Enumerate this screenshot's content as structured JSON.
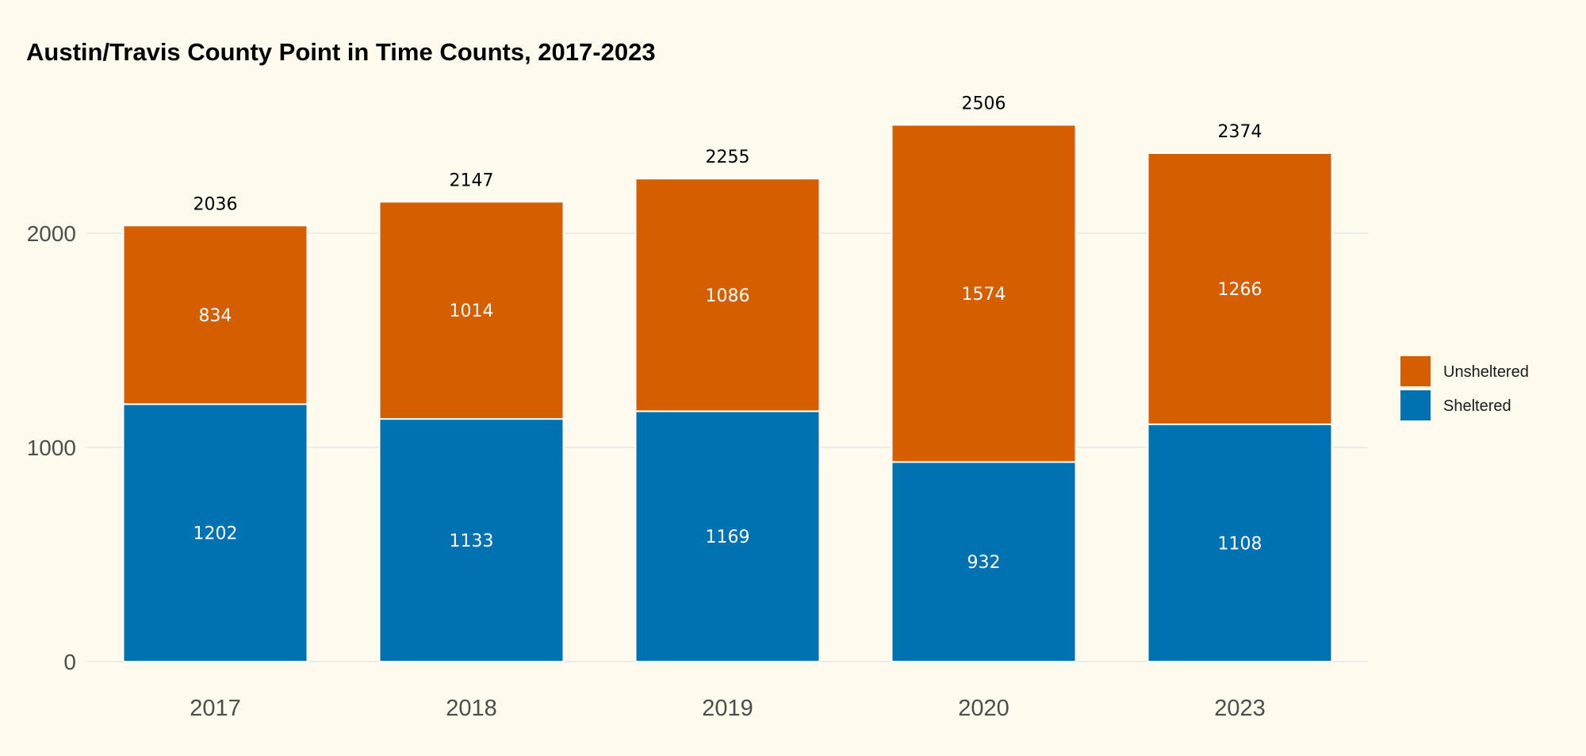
{
  "chart_data": {
    "type": "bar",
    "stacked": true,
    "title": "Austin/Travis County Point in Time Counts, 2017-2023",
    "xlabel": "",
    "ylabel": "",
    "categories": [
      "2017",
      "2018",
      "2019",
      "2020",
      "2023"
    ],
    "series": [
      {
        "name": "Sheltered",
        "color": "#0072B2",
        "values": [
          1202,
          1133,
          1169,
          932,
          1108
        ]
      },
      {
        "name": "Unsheltered",
        "color": "#D55E00",
        "values": [
          834,
          1014,
          1086,
          1574,
          1266
        ]
      }
    ],
    "totals": [
      2036,
      2147,
      2255,
      2506,
      2374
    ],
    "yticks": [
      0,
      1000,
      2000
    ],
    "ylim": [
      0,
      2506
    ],
    "grid": "horizontal",
    "legend_position": "right",
    "legend_order": [
      "Unsheltered",
      "Sheltered"
    ]
  }
}
